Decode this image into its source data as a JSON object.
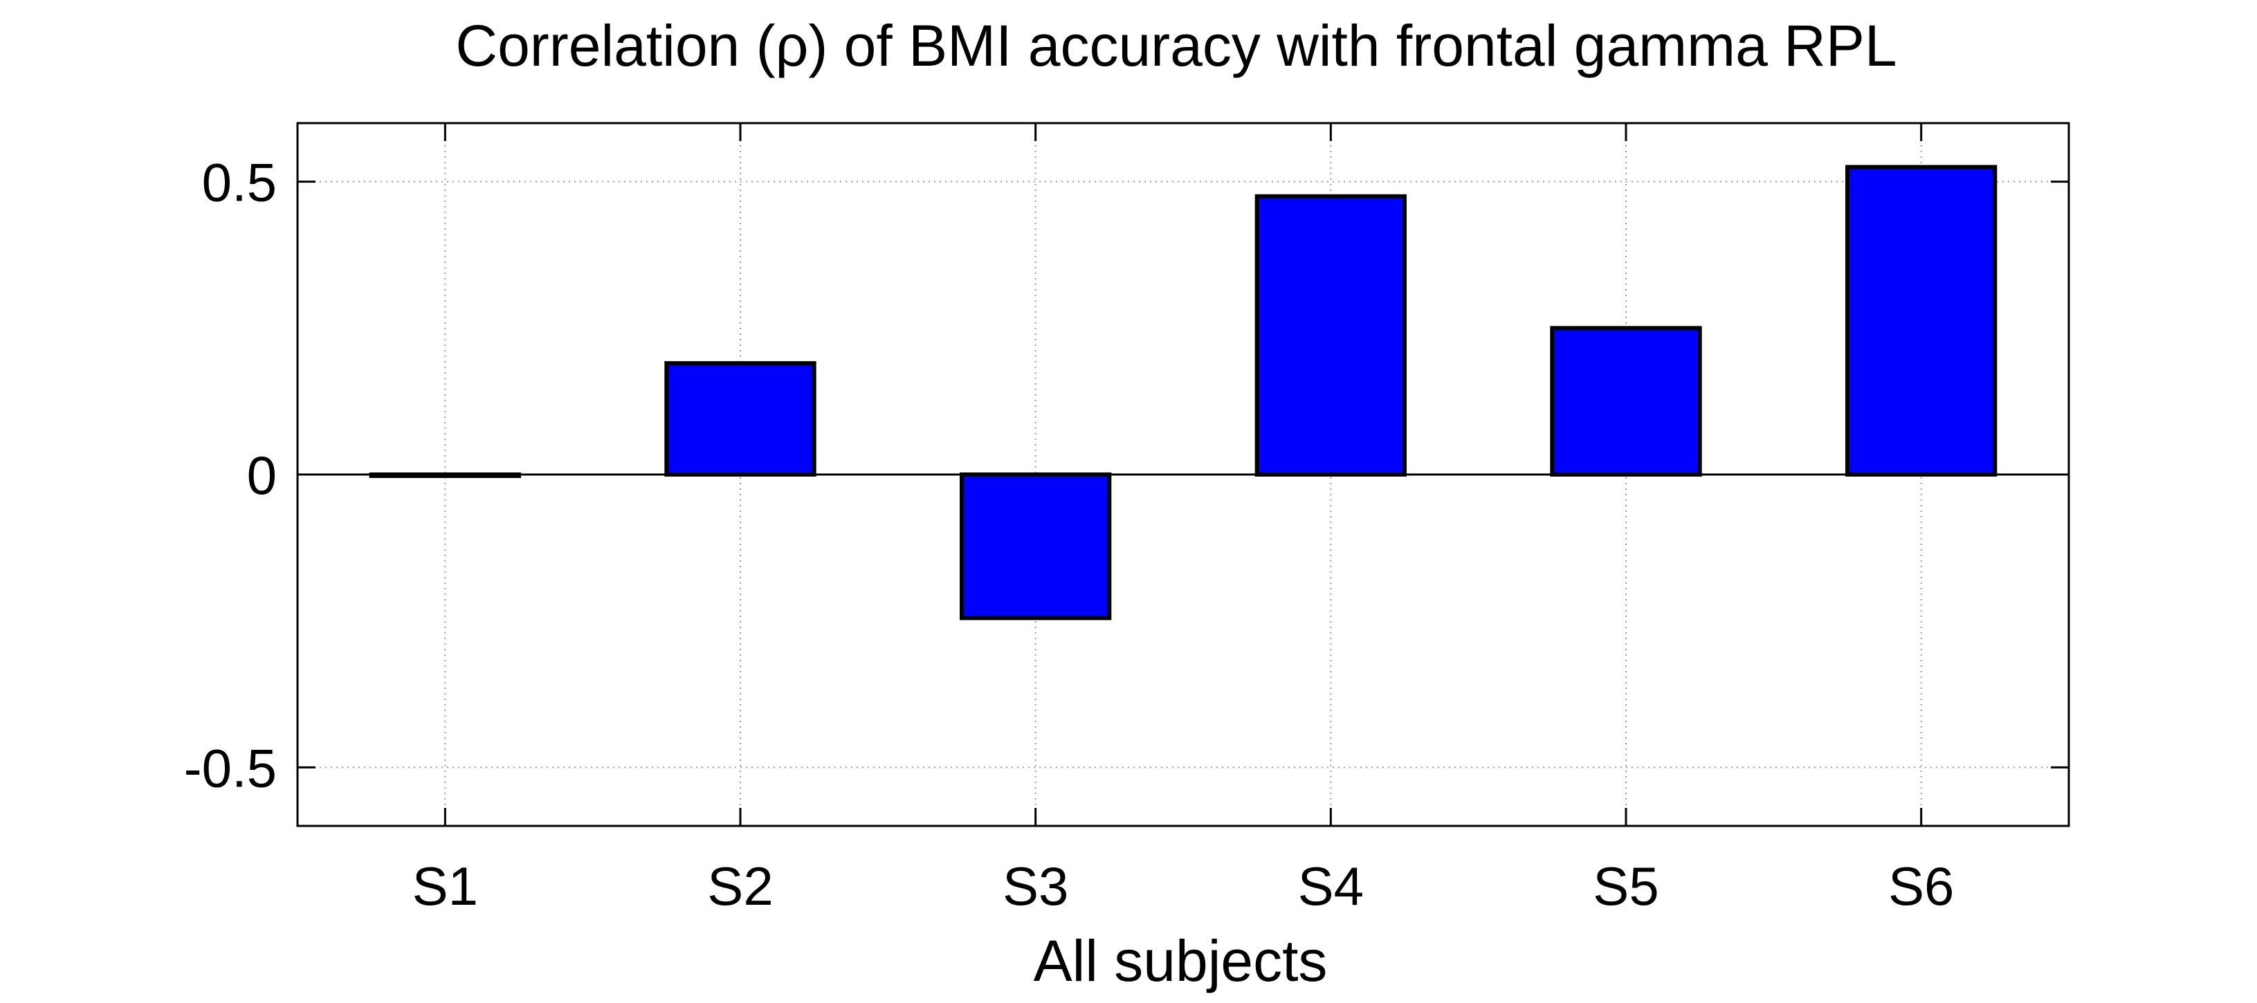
{
  "chart_data": {
    "type": "bar",
    "title": "Correlation (ρ) of BMI accuracy with frontal gamma RPL",
    "xlabel": "All subjects",
    "ylabel": "",
    "categories": [
      "S1",
      "S2",
      "S3",
      "S4",
      "S5",
      "S6"
    ],
    "values": [
      0.0,
      0.19,
      -0.245,
      0.475,
      0.25,
      0.525
    ],
    "ylim": [
      -0.6,
      0.6
    ],
    "yticks": [
      -0.5,
      0,
      0.5
    ],
    "ytick_labels": [
      "-0.5",
      "0",
      "0.5"
    ],
    "grid": true,
    "bar_color": "#0000ff",
    "edge_color": "#000000"
  }
}
